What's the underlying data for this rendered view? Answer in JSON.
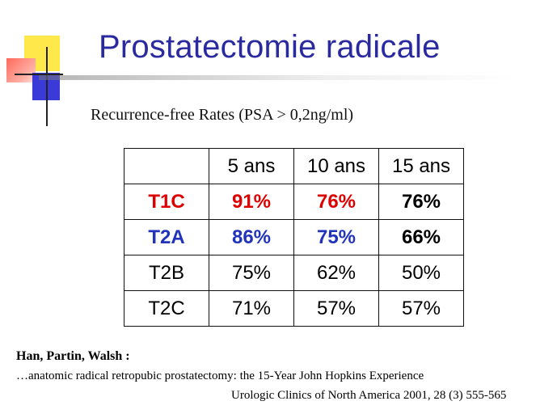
{
  "title": "Prostatectomie radicale",
  "subtitle": "Recurrence-free Rates (PSA > 0,2ng/ml)",
  "table": {
    "headers": [
      "",
      "5 ans",
      "10 ans",
      "15 ans"
    ],
    "rows": [
      {
        "label": "T1C",
        "values": [
          "91%",
          "76%",
          "76%"
        ]
      },
      {
        "label": "T2A",
        "values": [
          "86%",
          "75%",
          "66%"
        ]
      },
      {
        "label": "T2B",
        "values": [
          "75%",
          "62%",
          "50%"
        ]
      },
      {
        "label": "T2C",
        "values": [
          "71%",
          "57%",
          "57%"
        ]
      }
    ]
  },
  "reference": {
    "authors": "Han, Partin, Walsh :",
    "title": "…anatomic radical retropubic prostatectomy: the 15-Year John Hopkins Experience",
    "journal": "Urologic Clinics of North America 2001, 28 (3) 555-565"
  },
  "colors": {
    "title": "#2a2aa0",
    "highlight_red": "#dd0000",
    "highlight_blue": "#2233bb"
  }
}
